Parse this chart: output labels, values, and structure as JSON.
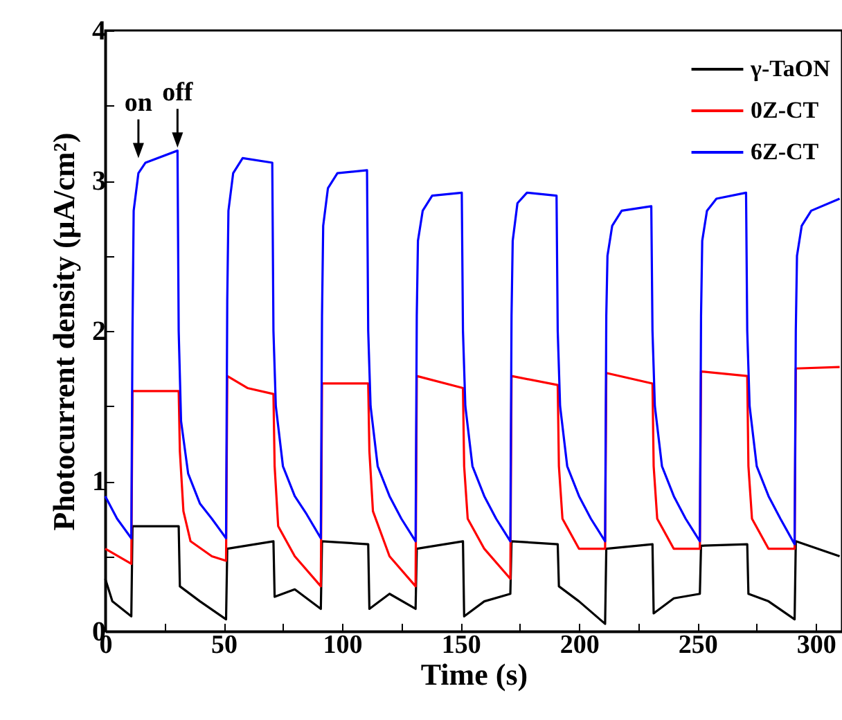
{
  "chart_data": {
    "type": "line",
    "xlabel": "Time (s)",
    "ylabel": "Photocurrent density (μA/cm²)",
    "xlim": [
      0,
      311
    ],
    "ylim": [
      0,
      4
    ],
    "xticks": [
      0,
      {
        "value": 25,
        "label": null
      },
      50,
      {
        "value": 75,
        "label": null
      },
      100,
      {
        "value": 125,
        "label": null
      },
      150,
      {
        "value": 175,
        "label": null
      },
      200,
      {
        "value": 225,
        "label": null
      },
      250,
      {
        "value": 275,
        "label": null
      },
      300
    ],
    "yticks": [
      0,
      {
        "value": 0.5,
        "label": null
      },
      1,
      {
        "value": 1.5,
        "label": null
      },
      2,
      {
        "value": 2.5,
        "label": null
      },
      3,
      {
        "value": 3.5,
        "label": null
      },
      4
    ],
    "legend": "top right",
    "annotations": [
      {
        "text": "on",
        "x": 14,
        "y": 3.15
      },
      {
        "text": "off",
        "x": 30.5,
        "y": 3.22
      }
    ],
    "series": [
      {
        "name": "γ-TaON",
        "color": "#000000",
        "x": [
          0,
          3,
          11,
          11.5,
          31,
          31.5,
          40,
          51,
          51.5,
          71,
          71.5,
          80,
          91,
          91.5,
          111,
          111.5,
          120,
          131,
          131.5,
          151,
          151.5,
          160,
          171,
          171.5,
          191,
          191.5,
          200,
          211,
          211.5,
          231,
          231.5,
          240,
          251,
          251.5,
          271,
          271.5,
          280,
          291,
          291.5,
          310
        ],
        "values": [
          0.35,
          0.2,
          0.1,
          0.7,
          0.7,
          0.3,
          0.2,
          0.08,
          0.55,
          0.6,
          0.23,
          0.28,
          0.15,
          0.6,
          0.58,
          0.15,
          0.25,
          0.15,
          0.55,
          0.6,
          0.1,
          0.2,
          0.25,
          0.6,
          0.58,
          0.3,
          0.2,
          0.05,
          0.55,
          0.58,
          0.12,
          0.22,
          0.25,
          0.57,
          0.58,
          0.25,
          0.2,
          0.08,
          0.6,
          0.5
        ]
      },
      {
        "name": "0Z-CT",
        "color": "#ff0000",
        "x": [
          0,
          11,
          11.5,
          31,
          31.5,
          33,
          36,
          45,
          51,
          51.5,
          60,
          71,
          71.5,
          73,
          80,
          91,
          91.5,
          111,
          111.5,
          113,
          120,
          131,
          131.5,
          151,
          151.5,
          153,
          160,
          171,
          171.5,
          191,
          191.5,
          193,
          200,
          211,
          211.5,
          231,
          231.5,
          233,
          240,
          251,
          251.5,
          271,
          271.5,
          273,
          280,
          291,
          291.5,
          310
        ],
        "values": [
          0.55,
          0.45,
          1.6,
          1.6,
          1.2,
          0.8,
          0.6,
          0.5,
          0.47,
          1.7,
          1.62,
          1.58,
          1.1,
          0.7,
          0.5,
          0.3,
          1.65,
          1.65,
          1.2,
          0.8,
          0.5,
          0.3,
          1.7,
          1.62,
          1.1,
          0.75,
          0.55,
          0.35,
          1.7,
          1.64,
          1.1,
          0.75,
          0.55,
          0.55,
          1.72,
          1.65,
          1.1,
          0.75,
          0.55,
          0.55,
          1.73,
          1.7,
          1.1,
          0.75,
          0.55,
          0.55,
          1.75,
          1.76
        ]
      },
      {
        "name": "6Z-CT",
        "color": "#0000ff",
        "x": [
          0,
          5,
          11,
          11.5,
          12,
          14,
          17,
          30.5,
          31,
          32,
          35,
          40,
          45,
          51,
          51.5,
          52,
          54,
          58,
          70.5,
          71,
          72,
          75,
          80,
          85,
          91,
          91.5,
          92,
          94,
          98,
          110.5,
          111,
          112,
          115,
          120,
          125,
          131,
          131.5,
          132,
          134,
          138,
          150.5,
          151,
          152,
          155,
          160,
          165,
          171,
          171.5,
          172,
          174,
          178,
          190.5,
          191,
          192,
          195,
          200,
          205,
          211,
          211.5,
          212,
          214,
          218,
          230.5,
          231,
          232,
          235,
          240,
          245,
          251,
          251.5,
          252,
          254,
          258,
          270.5,
          271,
          272,
          275,
          280,
          285,
          291,
          291.5,
          292,
          294,
          298,
          310
        ],
        "values": [
          0.9,
          0.75,
          0.62,
          2.0,
          2.8,
          3.05,
          3.12,
          3.2,
          2.0,
          1.4,
          1.05,
          0.85,
          0.75,
          0.62,
          2.2,
          2.8,
          3.05,
          3.15,
          3.12,
          2.0,
          1.5,
          1.1,
          0.9,
          0.78,
          0.62,
          2.1,
          2.7,
          2.95,
          3.05,
          3.07,
          2.0,
          1.5,
          1.1,
          0.9,
          0.75,
          0.6,
          2.1,
          2.6,
          2.8,
          2.9,
          2.92,
          2.0,
          1.5,
          1.1,
          0.9,
          0.75,
          0.6,
          2.1,
          2.6,
          2.85,
          2.92,
          2.9,
          2.0,
          1.5,
          1.1,
          0.9,
          0.75,
          0.6,
          2.1,
          2.5,
          2.7,
          2.8,
          2.83,
          2.0,
          1.5,
          1.1,
          0.9,
          0.75,
          0.6,
          2.1,
          2.6,
          2.8,
          2.88,
          2.92,
          2.0,
          1.5,
          1.1,
          0.9,
          0.75,
          0.58,
          2.0,
          2.5,
          2.7,
          2.8,
          2.88
        ]
      }
    ]
  }
}
